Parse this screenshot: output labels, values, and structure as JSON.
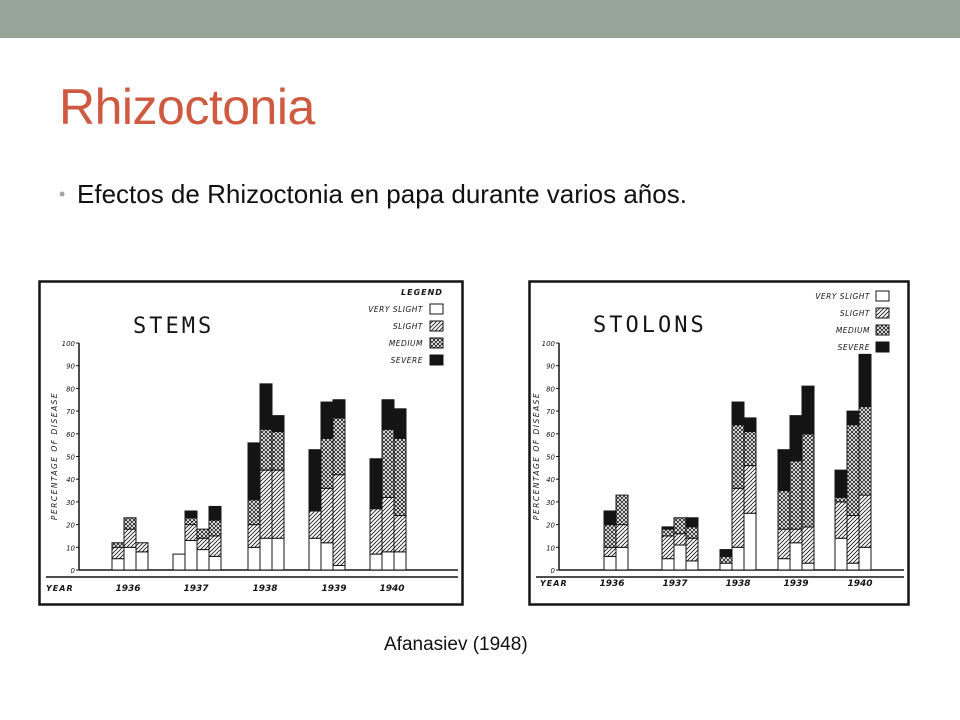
{
  "slide": {
    "title": "Rhizoctonia",
    "bullet": "Efectos de Rhizoctonia en papa durante varios años.",
    "citation": "Afanasiev (1948)"
  },
  "colors": {
    "top_bar": "#96a599",
    "title": "#cd5a41",
    "ink": "#141414",
    "bullet_dot": "#a5a5a5"
  },
  "chart_data": [
    {
      "type": "bar",
      "stacked": true,
      "title": "STEMS",
      "legend_title": "LEGEND",
      "legend": [
        "VERY SLIGHT",
        "SLIGHT",
        "MEDIUM",
        "SEVERE"
      ],
      "legend_position": "top-right",
      "ylabel": "PERCENTAGE OF DISEASE",
      "xlabel": "YEAR",
      "ylim": [
        0,
        100
      ],
      "yticks": [
        "0",
        "10",
        "20",
        "30",
        "40",
        "50",
        "60",
        "70",
        "80",
        "90",
        "100"
      ],
      "categories": [
        "1936",
        "1937",
        "1938",
        "1939",
        "1940"
      ],
      "bars": [
        {
          "group": "1936",
          "values": [
            5,
            5,
            2,
            0
          ]
        },
        {
          "group": "1936",
          "values": [
            10,
            8,
            5,
            0
          ]
        },
        {
          "group": "1936",
          "values": [
            8,
            4,
            0,
            0
          ]
        },
        {
          "group": "1937",
          "values": [
            7,
            0,
            0,
            0
          ]
        },
        {
          "group": "1937",
          "values": [
            13,
            7,
            3,
            3
          ]
        },
        {
          "group": "1937",
          "values": [
            9,
            5,
            4,
            0
          ]
        },
        {
          "group": "1937",
          "values": [
            6,
            9,
            7,
            6
          ]
        },
        {
          "group": "1938",
          "values": [
            10,
            10,
            11,
            25
          ]
        },
        {
          "group": "1938",
          "values": [
            14,
            30,
            18,
            20
          ]
        },
        {
          "group": "1938",
          "values": [
            14,
            30,
            17,
            7
          ]
        },
        {
          "group": "1939",
          "values": [
            14,
            12,
            0,
            27
          ]
        },
        {
          "group": "1939",
          "values": [
            12,
            24,
            22,
            16
          ]
        },
        {
          "group": "1939",
          "values": [
            2,
            40,
            25,
            8
          ]
        },
        {
          "group": "1940",
          "values": [
            7,
            20,
            0,
            22
          ]
        },
        {
          "group": "1940",
          "values": [
            8,
            24,
            30,
            13
          ]
        },
        {
          "group": "1940",
          "values": [
            8,
            16,
            34,
            13
          ]
        }
      ]
    },
    {
      "type": "bar",
      "stacked": true,
      "title": "STOLONS",
      "legend": [
        "VERY SLIGHT",
        "SLIGHT",
        "MEDIUM",
        "SEVERE"
      ],
      "legend_position": "top-right",
      "ylabel": "PERCENTAGE OF DISEASE",
      "xlabel": "YEAR",
      "ylim": [
        0,
        100
      ],
      "yticks": [
        "0",
        "10",
        "20",
        "30",
        "40",
        "50",
        "60",
        "70",
        "80",
        "90",
        "100"
      ],
      "categories": [
        "1936",
        "1937",
        "1938",
        "1939",
        "1940"
      ],
      "bars": [
        {
          "group": "1936",
          "values": [
            6,
            4,
            10,
            6
          ]
        },
        {
          "group": "1936",
          "values": [
            10,
            10,
            13,
            0
          ]
        },
        {
          "group": "1937",
          "values": [
            5,
            10,
            3,
            1
          ]
        },
        {
          "group": "1937",
          "values": [
            11,
            5,
            7,
            0
          ]
        },
        {
          "group": "1937",
          "values": [
            4,
            10,
            5,
            4
          ]
        },
        {
          "group": "1938",
          "values": [
            3,
            0,
            3,
            3
          ]
        },
        {
          "group": "1938",
          "values": [
            10,
            26,
            28,
            10
          ]
        },
        {
          "group": "1938",
          "values": [
            25,
            21,
            15,
            6
          ]
        },
        {
          "group": "1939",
          "values": [
            5,
            13,
            17,
            18
          ]
        },
        {
          "group": "1939",
          "values": [
            12,
            6,
            30,
            20
          ]
        },
        {
          "group": "1939",
          "values": [
            3,
            16,
            41,
            21
          ]
        },
        {
          "group": "1940",
          "values": [
            14,
            16,
            2,
            12
          ]
        },
        {
          "group": "1940",
          "values": [
            3,
            21,
            40,
            6
          ]
        },
        {
          "group": "1940",
          "values": [
            10,
            23,
            39,
            23
          ]
        }
      ]
    }
  ]
}
